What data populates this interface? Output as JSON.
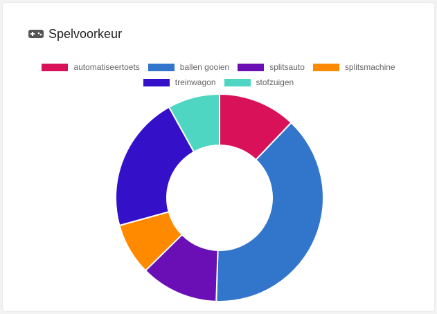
{
  "card": {
    "title": "Spelvoorkeur",
    "icon": "gamepad-icon"
  },
  "chart_data": {
    "type": "doughnut",
    "title": "Spelvoorkeur",
    "legend_position": "top",
    "categories": [
      "automatiseertoets",
      "ballen gooien",
      "splitsauto",
      "splitsmachine",
      "treinwagon",
      "stofzuigen"
    ],
    "values": [
      12,
      38,
      12,
      8,
      21,
      8
    ],
    "colors": [
      "#d81159",
      "#3276cc",
      "#6a0fb5",
      "#ff8a00",
      "#3410c9",
      "#4ed6c2"
    ]
  }
}
